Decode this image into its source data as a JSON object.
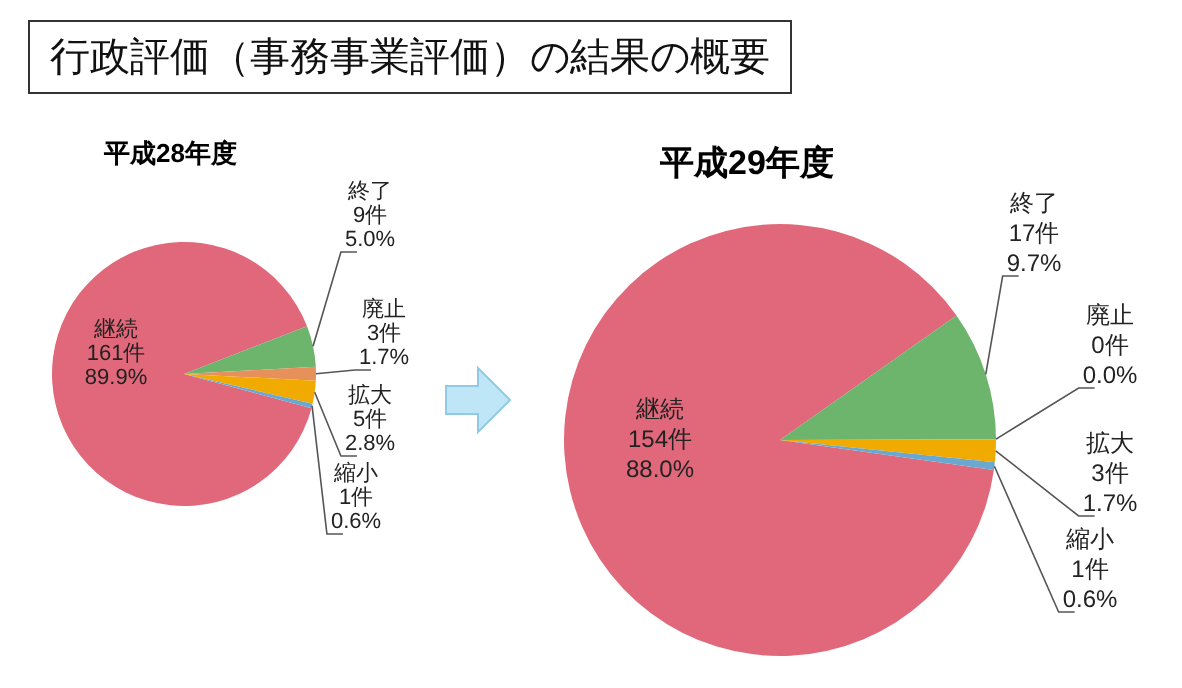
{
  "chart_data": [
    {
      "type": "pie",
      "title": "平成28年度",
      "annotations": [
        "行政評価（事務事業評価）の結果の概要"
      ],
      "categories": [
        "継続",
        "終了",
        "廃止",
        "拡大",
        "縮小"
      ],
      "values": [
        161,
        9,
        3,
        5,
        1
      ],
      "value_labels": [
        "161件 89.9%",
        "9件 5.0%",
        "3件 1.7%",
        "5件 2.8%",
        "1件 0.6%"
      ],
      "colors": [
        "#e0687a",
        "#6db46d",
        "#e8905a",
        "#f0aa00",
        "#6aa8d0"
      ]
    },
    {
      "type": "pie",
      "title": "平成29年度",
      "categories": [
        "継続",
        "終了",
        "廃止",
        "拡大",
        "縮小"
      ],
      "values": [
        154,
        17,
        0,
        3,
        1
      ],
      "value_labels": [
        "154件 88.0%",
        "17件 9.7%",
        "0件 0.0%",
        "3件 1.7%",
        "1件 0.6%"
      ],
      "colors": [
        "#e0687a",
        "#6db46d",
        "#e8905a",
        "#f0aa00",
        "#6aa8d0"
      ]
    }
  ]
}
